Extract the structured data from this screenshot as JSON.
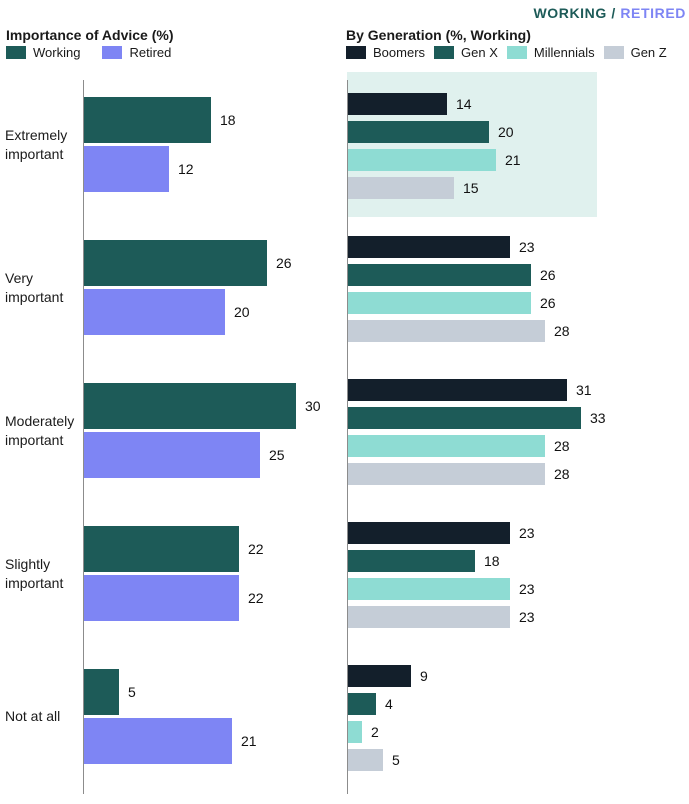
{
  "header": {
    "working": "WORKING",
    "separator": " / ",
    "retired": "RETIRED",
    "working_color": "#1D5B58",
    "retired_color": "#7E85F4"
  },
  "panels": {
    "left": {
      "title": "Importance of Advice (%)"
    },
    "right": {
      "title": "By Generation (%, Working)"
    }
  },
  "chart_data": [
    {
      "type": "bar",
      "orientation": "horizontal",
      "panel": "left",
      "title": "Importance of Advice (%)",
      "categories": [
        "Extremely important",
        "Very important",
        "Moderately important",
        "Slightly important",
        "Not at all"
      ],
      "series": [
        {
          "name": "Working",
          "color": "#1D5B58",
          "values": [
            18,
            26,
            30,
            22,
            5
          ]
        },
        {
          "name": "Retired",
          "color": "#7E85F4",
          "values": [
            12,
            20,
            25,
            22,
            21
          ]
        }
      ],
      "xlim": [
        0,
        35
      ],
      "value_labels": true,
      "legend_position": "top",
      "grid": false
    },
    {
      "type": "bar",
      "orientation": "horizontal",
      "panel": "right",
      "title": "By Generation (%, Working)",
      "categories": [
        "Extremely important",
        "Very important",
        "Moderately important",
        "Slightly important",
        "Not at all"
      ],
      "series": [
        {
          "name": "Boomers",
          "color": "#131F2B",
          "values": [
            14,
            23,
            31,
            23,
            9
          ]
        },
        {
          "name": "Gen X",
          "color": "#1D5B58",
          "values": [
            20,
            26,
            33,
            18,
            4
          ]
        },
        {
          "name": "Millennials",
          "color": "#8EDCD3",
          "values": [
            21,
            26,
            28,
            23,
            2
          ]
        },
        {
          "name": "Gen Z",
          "color": "#C5CDD7",
          "values": [
            15,
            28,
            28,
            23,
            5
          ]
        }
      ],
      "xlim": [
        0,
        35
      ],
      "value_labels": true,
      "legend_position": "top",
      "grid": false,
      "highlight": {
        "category": "Extremely important",
        "color": "#E0F1EE"
      }
    }
  ]
}
